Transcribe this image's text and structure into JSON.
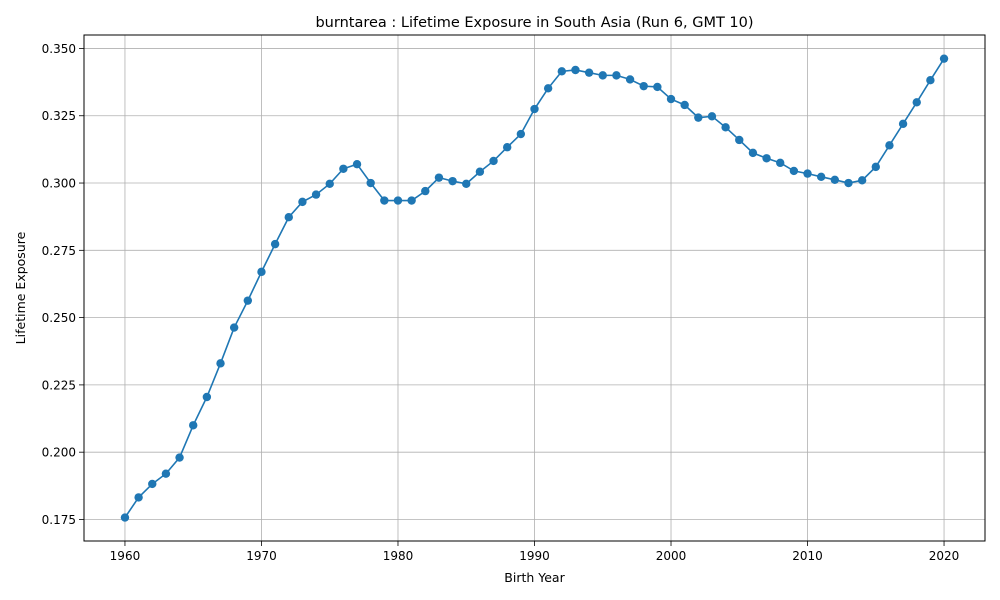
{
  "chart_data": {
    "type": "line",
    "title": "burntarea : Lifetime Exposure in South Asia (Run 6, GMT 10)",
    "xlabel": "Birth Year",
    "ylabel": "Lifetime Exposure",
    "xlim": [
      1957,
      2023
    ],
    "ylim": [
      0.167,
      0.355
    ],
    "xticks": [
      1960,
      1970,
      1980,
      1990,
      2000,
      2010,
      2020
    ],
    "yticks": [
      0.175,
      0.2,
      0.225,
      0.25,
      0.275,
      0.3,
      0.325,
      0.35
    ],
    "ytick_labels": [
      "0.175",
      "0.200",
      "0.225",
      "0.250",
      "0.275",
      "0.300",
      "0.325",
      "0.350"
    ],
    "grid": true,
    "line_color": "#1f77b4",
    "marker": "circle",
    "series": [
      {
        "x": [
          1960,
          1961,
          1962,
          1963,
          1964,
          1965,
          1966,
          1967,
          1968,
          1969,
          1970,
          1971,
          1972,
          1973,
          1974,
          1975,
          1976,
          1977,
          1978,
          1979,
          1980,
          1981,
          1982,
          1983,
          1984,
          1985,
          1986,
          1987,
          1988,
          1989,
          1990,
          1991,
          1992,
          1993,
          1994,
          1995,
          1996,
          1997,
          1998,
          1999,
          2000,
          2001,
          2002,
          2003,
          2004,
          2005,
          2006,
          2007,
          2008,
          2009,
          2010,
          2011,
          2012,
          2013,
          2014,
          2015,
          2016,
          2017,
          2018,
          2019,
          2020
        ],
        "y": [
          0.1757,
          0.1832,
          0.1882,
          0.192,
          0.198,
          0.21,
          0.2205,
          0.233,
          0.2463,
          0.2563,
          0.267,
          0.2773,
          0.2873,
          0.293,
          0.2957,
          0.2997,
          0.3053,
          0.307,
          0.3,
          0.2935,
          0.2935,
          0.2935,
          0.297,
          0.302,
          0.3007,
          0.2997,
          0.3042,
          0.3082,
          0.3133,
          0.3182,
          0.3275,
          0.3352,
          0.3415,
          0.342,
          0.341,
          0.34,
          0.34,
          0.3385,
          0.336,
          0.3357,
          0.3312,
          0.329,
          0.3243,
          0.3248,
          0.3207,
          0.316,
          0.3112,
          0.3092,
          0.3075,
          0.3045,
          0.3035,
          0.3023,
          0.3012,
          0.3,
          0.301,
          0.306,
          0.314,
          0.322,
          0.33,
          0.3382,
          0.3462
        ]
      }
    ]
  }
}
